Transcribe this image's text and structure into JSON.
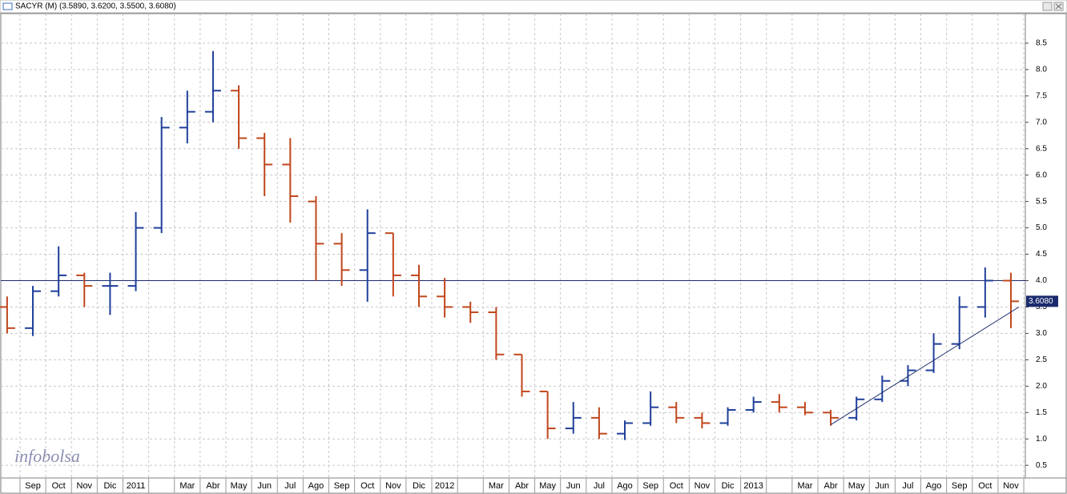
{
  "chart_data": {
    "type": "ohlc",
    "title": "SACYR (M) (3.5890, 3.6200, 3.5500, 3.6080)",
    "logo": "infobolsa",
    "last_label": "3.6080",
    "last_value": 3.608,
    "reference_line": 4.0,
    "trend_line": {
      "values": [
        1.27,
        3.5
      ]
    },
    "categories": [
      null,
      "Sep",
      "Oct",
      "Nov",
      "Dic",
      "2011",
      null,
      "Mar",
      "Abr",
      "May",
      "Jun",
      "Jul",
      "Ago",
      "Sep",
      "Oct",
      "Nov",
      "Dic",
      "2012",
      null,
      "Mar",
      "Abr",
      "May",
      "Jun",
      "Jul",
      "Ago",
      "Sep",
      "Oct",
      "Nov",
      "Dic",
      "2013",
      null,
      "Mar",
      "Abr",
      "May",
      "Jun",
      "Jul",
      "Ago",
      "Sep",
      "Oct",
      "Nov"
    ],
    "open": [
      3.5,
      3.1,
      3.8,
      4.1,
      3.9,
      3.9,
      5.0,
      6.9,
      7.2,
      7.6,
      6.7,
      6.2,
      5.5,
      4.7,
      4.2,
      4.9,
      4.1,
      3.7,
      3.5,
      3.4,
      2.6,
      1.9,
      1.2,
      1.4,
      1.1,
      1.3,
      1.6,
      1.4,
      1.3,
      1.55,
      1.7,
      1.6,
      1.5,
      1.4,
      1.75,
      2.1,
      2.3,
      2.8,
      3.5,
      4.0
    ],
    "high": [
      3.7,
      3.9,
      4.65,
      4.15,
      4.15,
      5.3,
      7.1,
      7.6,
      8.35,
      7.7,
      6.8,
      6.7,
      5.6,
      4.9,
      5.35,
      4.9,
      4.3,
      4.05,
      3.6,
      3.5,
      2.6,
      1.9,
      1.7,
      1.6,
      1.35,
      1.9,
      1.7,
      1.5,
      1.6,
      1.8,
      1.85,
      1.7,
      1.55,
      1.8,
      2.2,
      2.4,
      3.0,
      3.7,
      4.25,
      4.15
    ],
    "low": [
      3.0,
      2.95,
      3.7,
      3.5,
      3.35,
      3.8,
      4.9,
      6.6,
      7.0,
      6.5,
      5.6,
      5.1,
      4.0,
      3.9,
      3.6,
      3.7,
      3.5,
      3.3,
      3.2,
      2.5,
      1.8,
      1.0,
      1.1,
      1.0,
      0.98,
      1.25,
      1.3,
      1.2,
      1.25,
      1.5,
      1.5,
      1.45,
      1.25,
      1.35,
      1.7,
      2.0,
      2.25,
      2.7,
      3.3,
      3.1
    ],
    "close": [
      3.1,
      3.8,
      4.1,
      3.9,
      3.9,
      5.0,
      6.9,
      7.2,
      7.6,
      6.7,
      6.2,
      5.6,
      4.7,
      4.2,
      4.9,
      4.1,
      3.7,
      3.5,
      3.4,
      2.6,
      1.9,
      1.2,
      1.4,
      1.1,
      1.3,
      1.6,
      1.4,
      1.3,
      1.55,
      1.7,
      1.6,
      1.5,
      1.4,
      1.75,
      2.1,
      2.3,
      2.8,
      3.5,
      4.0,
      3.608
    ],
    "up_color": "#1f3f9a",
    "down_color": "#c0461c",
    "ylim": [
      0.26,
      9.06
    ],
    "yticks": [
      0.5,
      {
        "value": 1,
        "label": "1.0"
      },
      1.5,
      {
        "value": 2,
        "label": "2.0"
      },
      2.5,
      {
        "value": 3,
        "label": "3.0"
      },
      3.5,
      {
        "value": 4,
        "label": "4.0"
      },
      4.5,
      {
        "value": 5,
        "label": "5.0"
      },
      5.5,
      {
        "value": 6,
        "label": "6.0"
      },
      6.5,
      {
        "value": 7,
        "label": "7.0"
      },
      7.5,
      {
        "value": 8,
        "label": "8.0"
      },
      8.5
    ],
    "grid": true
  }
}
